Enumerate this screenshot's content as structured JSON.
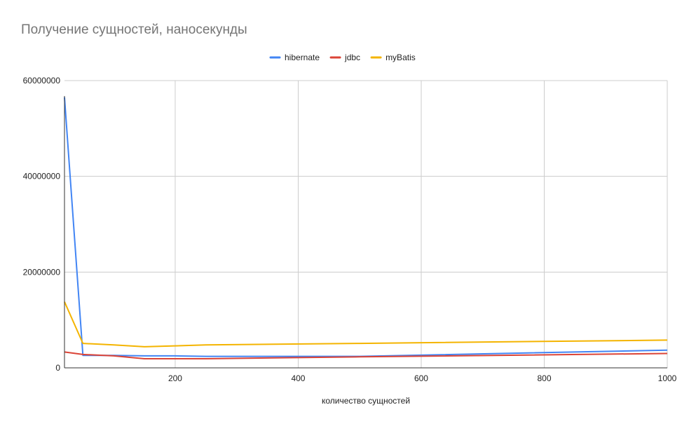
{
  "chart_data": {
    "type": "line",
    "title": "Получение сущностей, наносекунды",
    "xlabel": "количество сущностей",
    "ylabel": "",
    "xlim": [
      20,
      1000
    ],
    "ylim": [
      0,
      60000000
    ],
    "x_ticks": [
      "200",
      "400",
      "600",
      "800",
      "1000"
    ],
    "y_ticks": [
      "0",
      "20000000",
      "40000000",
      "60000000"
    ],
    "grid": true,
    "legend_position": "top-center",
    "x": [
      20,
      50,
      100,
      150,
      200,
      250,
      500,
      1000
    ],
    "series": [
      {
        "name": "hibernate",
        "color": "#4285f4",
        "values": [
          56500000,
          2600000,
          2600000,
          2500000,
          2500000,
          2400000,
          2400000,
          3700000
        ]
      },
      {
        "name": "jdbc",
        "color": "#db4437",
        "values": [
          3300000,
          2800000,
          2500000,
          1900000,
          1900000,
          1900000,
          2300000,
          3000000
        ]
      },
      {
        "name": "myBatis",
        "color": "#f4b400",
        "values": [
          13800000,
          5100000,
          4800000,
          4400000,
          4600000,
          4800000,
          5100000,
          5800000
        ]
      }
    ]
  }
}
